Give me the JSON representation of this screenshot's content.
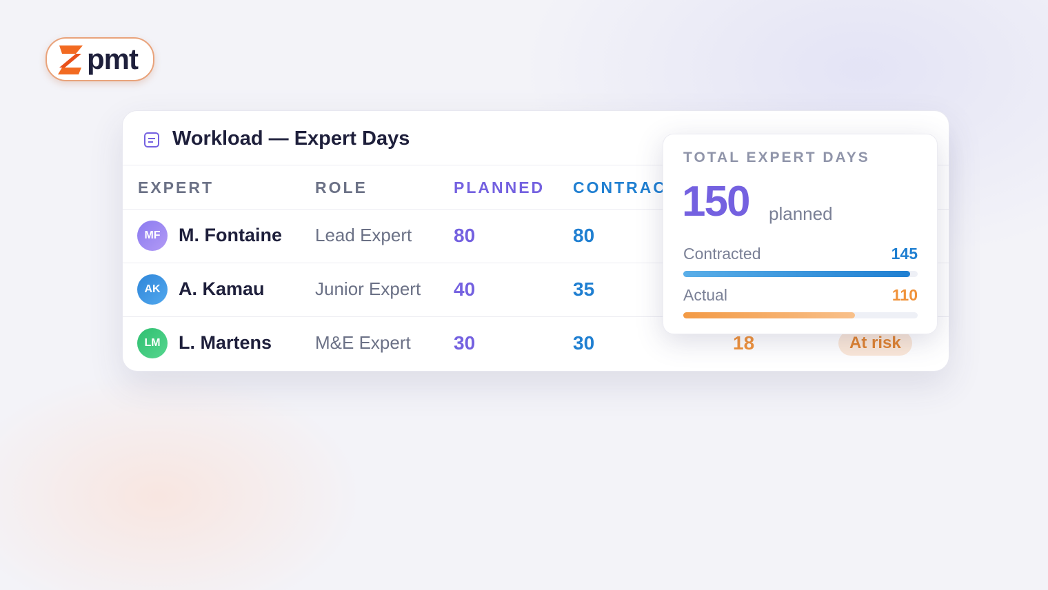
{
  "logo": {
    "text": "pmt"
  },
  "panel": {
    "title": "Workload — Expert Days",
    "columns": [
      "EXPERT",
      "ROLE",
      "PLANNED",
      "CONTRACTED"
    ],
    "rows": [
      {
        "initials": "MF",
        "name": "M. Fontaine",
        "role": "Lead Expert",
        "planned": 80,
        "contracted": 80
      },
      {
        "initials": "AK",
        "name": "A. Kamau",
        "role": "Junior Expert",
        "planned": 40,
        "contracted": 35
      },
      {
        "initials": "LM",
        "name": "L. Martens",
        "role": "M&E Expert",
        "planned": 30,
        "contracted": 30,
        "actual": 18,
        "status": "At risk"
      }
    ]
  },
  "summary": {
    "title": "TOTAL EXPERT DAYS",
    "total": 150,
    "total_unit": "planned",
    "contracted": {
      "label": "Contracted",
      "value": 145
    },
    "actual": {
      "label": "Actual",
      "value": 110
    }
  }
}
